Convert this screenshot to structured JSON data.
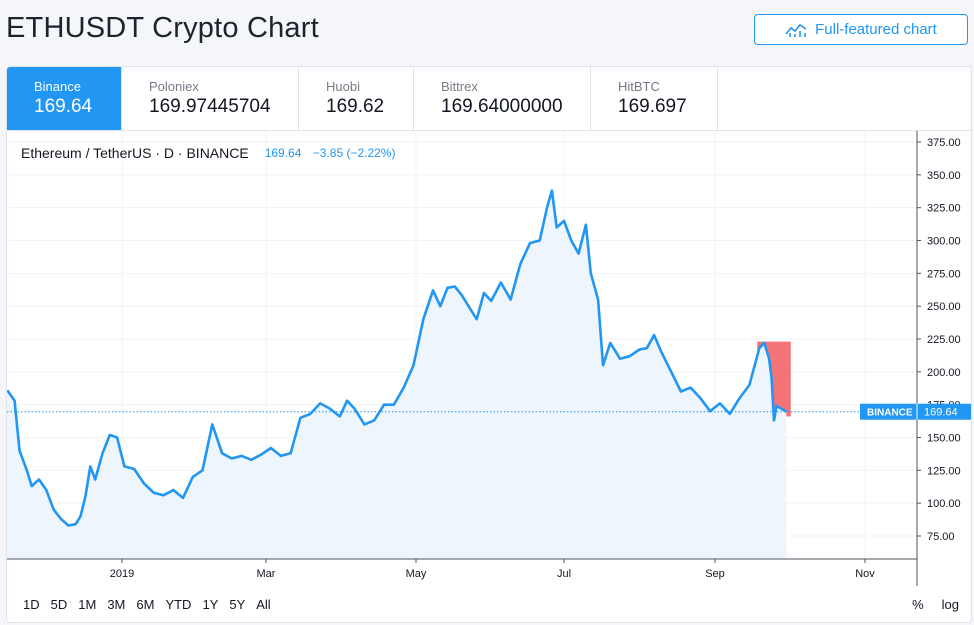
{
  "page": {
    "title": "ETHUSDT Crypto Chart",
    "full_chart_label": "Full-featured chart"
  },
  "exchanges": [
    {
      "name": "Binance",
      "price": "169.64",
      "active": true
    },
    {
      "name": "Poloniex",
      "price": "169.97445704",
      "active": false
    },
    {
      "name": "Huobi",
      "price": "169.62",
      "active": false
    },
    {
      "name": "Bittrex",
      "price": "169.64000000",
      "active": false
    },
    {
      "name": "HitBTC",
      "price": "169.697",
      "active": false
    }
  ],
  "legend": {
    "symbol": "Ethereum / TetherUS · D · BINANCE",
    "last": "169.64",
    "change": "−3.85 (−2.22%)"
  },
  "price_tag": {
    "label": "BINANCE",
    "value": "169.64"
  },
  "ranges": [
    "1D",
    "5D",
    "1M",
    "3M",
    "6M",
    "YTD",
    "1Y",
    "5Y",
    "All"
  ],
  "scale_options": [
    "%",
    "log"
  ],
  "colors": {
    "accent": "#2196f3",
    "highlight": "#f25a5f",
    "area": "#eef5fd"
  },
  "chart_data": {
    "type": "area",
    "x_ticks": [
      "2019",
      "Mar",
      "May",
      "Jul",
      "Sep",
      "Nov"
    ],
    "y_ticks": [
      "375.00",
      "350.00",
      "325.00",
      "300.00",
      "275.00",
      "250.00",
      "225.00",
      "200.00",
      "175.00",
      "150.00",
      "125.00",
      "100.00",
      "75.00"
    ],
    "ylim": [
      50,
      380
    ],
    "grid": true,
    "series": [
      {
        "x": [
          "2018-11-15",
          "2018-11-18",
          "2018-11-20",
          "2018-11-23",
          "2018-11-25",
          "2018-11-28",
          "2018-12-01",
          "2018-12-04",
          "2018-12-07",
          "2018-12-10",
          "2018-12-13",
          "2018-12-15",
          "2018-12-17",
          "2018-12-19",
          "2018-12-21",
          "2018-12-24",
          "2018-12-27",
          "2018-12-30",
          "2019-01-02",
          "2019-01-06",
          "2019-01-10",
          "2019-01-14",
          "2019-01-18",
          "2019-01-22",
          "2019-01-26",
          "2019-01-30",
          "2019-02-03",
          "2019-02-07",
          "2019-02-11",
          "2019-02-15",
          "2019-02-19",
          "2019-02-23",
          "2019-02-27",
          "2019-03-03",
          "2019-03-07",
          "2019-03-11",
          "2019-03-15",
          "2019-03-19",
          "2019-03-23",
          "2019-03-27",
          "2019-03-31",
          "2019-04-03",
          "2019-04-06",
          "2019-04-10",
          "2019-04-14",
          "2019-04-18",
          "2019-04-22",
          "2019-04-26",
          "2019-04-30",
          "2019-05-04",
          "2019-05-08",
          "2019-05-11",
          "2019-05-14",
          "2019-05-17",
          "2019-05-20",
          "2019-05-23",
          "2019-05-26",
          "2019-05-29",
          "2019-06-01",
          "2019-06-05",
          "2019-06-09",
          "2019-06-13",
          "2019-06-17",
          "2019-06-21",
          "2019-06-24",
          "2019-06-26",
          "2019-06-28",
          "2019-07-01",
          "2019-07-04",
          "2019-07-07",
          "2019-07-10",
          "2019-07-12",
          "2019-07-15",
          "2019-07-17",
          "2019-07-20",
          "2019-07-24",
          "2019-07-28",
          "2019-08-01",
          "2019-08-04",
          "2019-08-07",
          "2019-08-10",
          "2019-08-14",
          "2019-08-18",
          "2019-08-22",
          "2019-08-26",
          "2019-08-30",
          "2019-09-03",
          "2019-09-07",
          "2019-09-11",
          "2019-09-15",
          "2019-09-19",
          "2019-09-21",
          "2019-09-23",
          "2019-09-24",
          "2019-09-25",
          "2019-09-26",
          "2019-09-28",
          "2019-09-30"
        ],
        "y": [
          186,
          178,
          140,
          125,
          113,
          118,
          110,
          95,
          88,
          83,
          84,
          90,
          105,
          128,
          118,
          138,
          152,
          150,
          128,
          126,
          115,
          108,
          106,
          110,
          104,
          120,
          125,
          160,
          138,
          134,
          136,
          133,
          137,
          142,
          136,
          138,
          165,
          168,
          176,
          172,
          166,
          178,
          172,
          160,
          163,
          175,
          175,
          188,
          205,
          240,
          262,
          250,
          264,
          265,
          258,
          249,
          240,
          260,
          254,
          268,
          255,
          282,
          298,
          300,
          325,
          338,
          310,
          315,
          300,
          290,
          312,
          275,
          255,
          205,
          222,
          210,
          212,
          217,
          218,
          228,
          215,
          200,
          185,
          188,
          180,
          170,
          176,
          168,
          180,
          190,
          218,
          222,
          210,
          195,
          163,
          174,
          172,
          169.64
        ]
      }
    ],
    "highlight_x": [
      "2019-09-19",
      "2019-10-01"
    ]
  }
}
